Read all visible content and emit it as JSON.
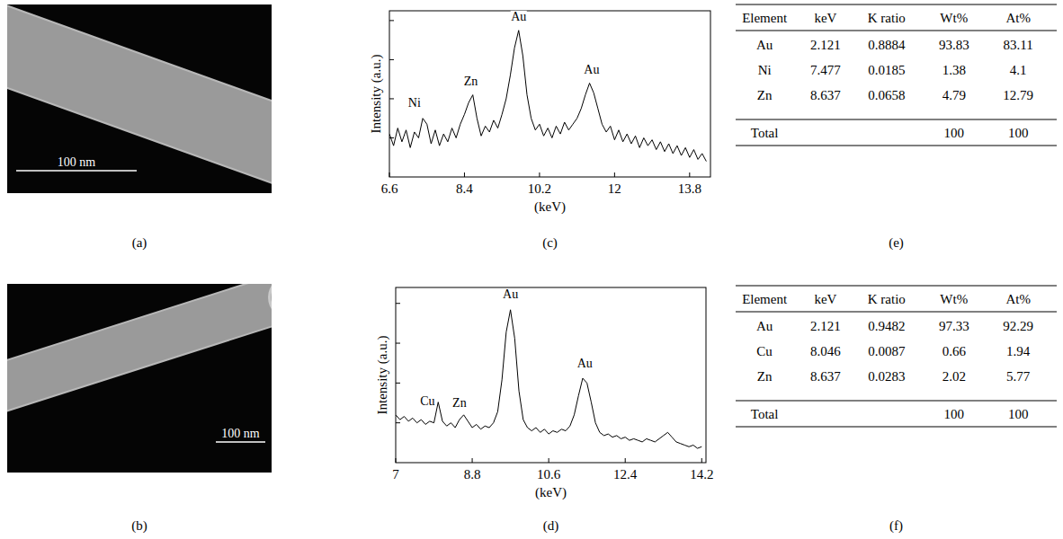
{
  "chart_data": [
    {
      "type": "line",
      "label": "(c)",
      "x_label": "(keV)",
      "y_label": "Intensity (a.u.)",
      "color": "#000000",
      "grid": false,
      "tick_labels": "x",
      "xlim": [
        6.6,
        14.3
      ],
      "xticks": [
        6.6,
        8.4,
        10.2,
        12,
        13.8
      ],
      "ylim": [
        0.2,
        1.05
      ],
      "yticks": [
        0.4,
        0.6,
        0.8,
        1.0
      ],
      "x": [
        6.6,
        6.7,
        6.8,
        6.9,
        7.0,
        7.1,
        7.2,
        7.3,
        7.4,
        7.5,
        7.6,
        7.7,
        7.8,
        7.9,
        8.0,
        8.1,
        8.2,
        8.3,
        8.4,
        8.5,
        8.6,
        8.7,
        8.8,
        8.9,
        9.0,
        9.1,
        9.2,
        9.3,
        9.4,
        9.5,
        9.6,
        9.7,
        9.8,
        9.9,
        10.0,
        10.1,
        10.2,
        10.3,
        10.4,
        10.5,
        10.6,
        10.7,
        10.8,
        10.9,
        11.0,
        11.1,
        11.2,
        11.3,
        11.4,
        11.5,
        11.6,
        11.7,
        11.8,
        11.9,
        12.0,
        12.1,
        12.2,
        12.3,
        12.4,
        12.5,
        12.6,
        12.7,
        12.8,
        12.9,
        13.0,
        13.1,
        13.2,
        13.3,
        13.4,
        13.5,
        13.6,
        13.7,
        13.8,
        13.9,
        14.0,
        14.1,
        14.2
      ],
      "values": [
        0.42,
        0.36,
        0.45,
        0.38,
        0.44,
        0.35,
        0.43,
        0.4,
        0.5,
        0.47,
        0.37,
        0.44,
        0.36,
        0.42,
        0.38,
        0.45,
        0.4,
        0.47,
        0.52,
        0.58,
        0.62,
        0.5,
        0.41,
        0.46,
        0.43,
        0.49,
        0.45,
        0.52,
        0.6,
        0.72,
        0.86,
        0.95,
        0.82,
        0.62,
        0.5,
        0.44,
        0.47,
        0.41,
        0.45,
        0.4,
        0.46,
        0.42,
        0.48,
        0.44,
        0.47,
        0.5,
        0.55,
        0.62,
        0.68,
        0.63,
        0.55,
        0.47,
        0.43,
        0.46,
        0.39,
        0.44,
        0.38,
        0.42,
        0.37,
        0.41,
        0.35,
        0.4,
        0.36,
        0.39,
        0.34,
        0.38,
        0.33,
        0.37,
        0.32,
        0.36,
        0.31,
        0.35,
        0.3,
        0.34,
        0.29,
        0.32,
        0.28
      ],
      "annotations": [
        {
          "text": "Ni",
          "x": 7.2,
          "y": 0.56
        },
        {
          "text": "Zn",
          "x": 8.55,
          "y": 0.67
        },
        {
          "text": "Au",
          "x": 9.7,
          "y": 1.0
        },
        {
          "text": "Au",
          "x": 11.45,
          "y": 0.73
        }
      ]
    },
    {
      "type": "line",
      "label": "(d)",
      "x_label": "(keV)",
      "y_label": "Intensity (a.u.)",
      "color": "#000000",
      "grid": false,
      "tick_labels": "x",
      "xlim": [
        7,
        14.3
      ],
      "xticks": [
        7,
        8.8,
        10.6,
        12.4,
        14.2
      ],
      "ylim": [
        0,
        1.1
      ],
      "yticks": [
        0.25,
        0.5,
        0.75,
        1.0
      ],
      "x": [
        7.0,
        7.1,
        7.2,
        7.3,
        7.4,
        7.5,
        7.6,
        7.7,
        7.8,
        7.9,
        8.0,
        8.1,
        8.2,
        8.3,
        8.4,
        8.5,
        8.6,
        8.7,
        8.8,
        8.9,
        9.0,
        9.1,
        9.2,
        9.3,
        9.4,
        9.5,
        9.6,
        9.7,
        9.8,
        9.9,
        10.0,
        10.1,
        10.2,
        10.3,
        10.4,
        10.5,
        10.6,
        10.7,
        10.8,
        10.9,
        11.0,
        11.1,
        11.2,
        11.3,
        11.4,
        11.5,
        11.6,
        11.7,
        11.8,
        11.9,
        12.0,
        12.1,
        12.2,
        12.3,
        12.4,
        12.5,
        12.6,
        12.7,
        12.8,
        12.9,
        13.0,
        13.1,
        13.2,
        13.3,
        13.4,
        13.5,
        13.6,
        13.7,
        13.8,
        13.9,
        14.0,
        14.1,
        14.2
      ],
      "values": [
        0.3,
        0.27,
        0.29,
        0.26,
        0.28,
        0.25,
        0.27,
        0.24,
        0.26,
        0.25,
        0.38,
        0.26,
        0.23,
        0.25,
        0.22,
        0.27,
        0.3,
        0.26,
        0.22,
        0.24,
        0.21,
        0.23,
        0.22,
        0.25,
        0.32,
        0.52,
        0.82,
        0.96,
        0.78,
        0.45,
        0.27,
        0.22,
        0.2,
        0.22,
        0.19,
        0.21,
        0.18,
        0.2,
        0.19,
        0.21,
        0.2,
        0.23,
        0.3,
        0.42,
        0.53,
        0.5,
        0.38,
        0.25,
        0.19,
        0.17,
        0.18,
        0.16,
        0.17,
        0.15,
        0.16,
        0.14,
        0.15,
        0.14,
        0.13,
        0.15,
        0.14,
        0.13,
        0.15,
        0.17,
        0.19,
        0.16,
        0.13,
        0.12,
        0.11,
        0.1,
        0.11,
        0.09,
        0.1
      ],
      "annotations": [
        {
          "text": "Cu",
          "x": 7.75,
          "y": 0.36
        },
        {
          "text": "Zn",
          "x": 8.5,
          "y": 0.35
        },
        {
          "text": "Au",
          "x": 9.7,
          "y": 1.03
        },
        {
          "text": "Au",
          "x": 11.45,
          "y": 0.6
        }
      ]
    }
  ],
  "images": [
    {
      "label": "(a)",
      "scale_bar": "100 nm"
    },
    {
      "label": "(b)",
      "scale_bar": "100 nm"
    }
  ],
  "tables": [
    {
      "label": "(e)",
      "columns": [
        "Element",
        "keV",
        "K ratio",
        "Wt%",
        "At%"
      ],
      "rows": [
        [
          "Au",
          "2.121",
          "0.8884",
          "93.83",
          "83.11"
        ],
        [
          "Ni",
          "7.477",
          "0.0185",
          "1.38",
          "4.1"
        ],
        [
          "Zn",
          "8.637",
          "0.0658",
          "4.79",
          "12.79"
        ]
      ],
      "total": {
        "label": "Total",
        "wt": "100",
        "at": "100"
      }
    },
    {
      "label": "(f)",
      "columns": [
        "Element",
        "keV",
        "K ratio",
        "Wt%",
        "At%"
      ],
      "rows": [
        [
          "Au",
          "2.121",
          "0.9482",
          "97.33",
          "92.29"
        ],
        [
          "Cu",
          "8.046",
          "0.0087",
          "0.66",
          "1.94"
        ],
        [
          "Zn",
          "8.637",
          "0.0283",
          "2.02",
          "5.77"
        ]
      ],
      "total": {
        "label": "Total",
        "wt": "100",
        "at": "100"
      }
    }
  ]
}
